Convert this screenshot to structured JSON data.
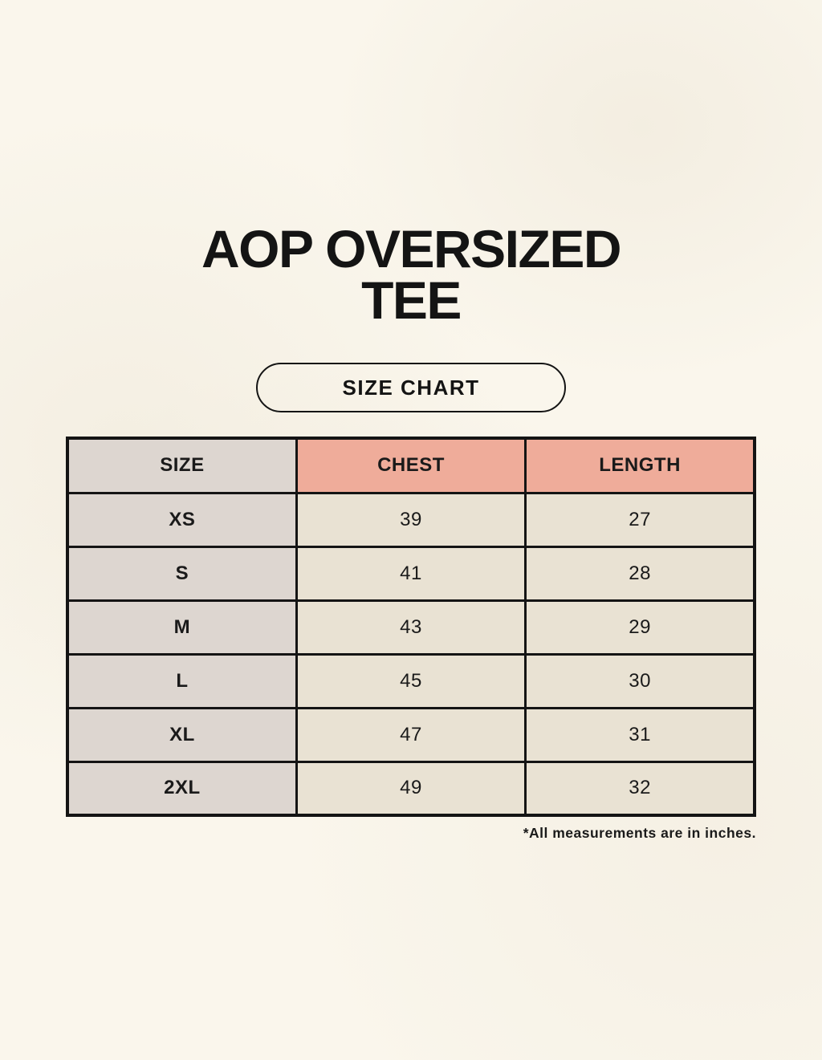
{
  "page": {
    "title_line1": "AOP OVERSIZED",
    "title_line2": "TEE",
    "badge_label": "SIZE CHART",
    "note": "*All measurements are in inches."
  },
  "chart_data": {
    "type": "table",
    "title": "AOP OVERSIZED TEE — SIZE CHART",
    "columns": [
      "SIZE",
      "CHEST",
      "LENGTH"
    ],
    "rows": [
      {
        "size": "XS",
        "chest": 39,
        "length": 27
      },
      {
        "size": "S",
        "chest": 41,
        "length": 28
      },
      {
        "size": "M",
        "chest": 43,
        "length": 29
      },
      {
        "size": "L",
        "chest": 45,
        "length": 30
      },
      {
        "size": "XL",
        "chest": 47,
        "length": 31
      },
      {
        "size": "2XL",
        "chest": 49,
        "length": 32
      }
    ],
    "units": "inches",
    "layout_hints": {
      "header_accent_columns": [
        "CHEST",
        "LENGTH"
      ],
      "grid": true
    }
  },
  "colors": {
    "background": "#faf6ec",
    "header_accent": "#efac9a",
    "size_column": "#ddd6d0",
    "data_cell": "#e9e2d3",
    "border": "#141414",
    "text": "#1a1a1a"
  }
}
